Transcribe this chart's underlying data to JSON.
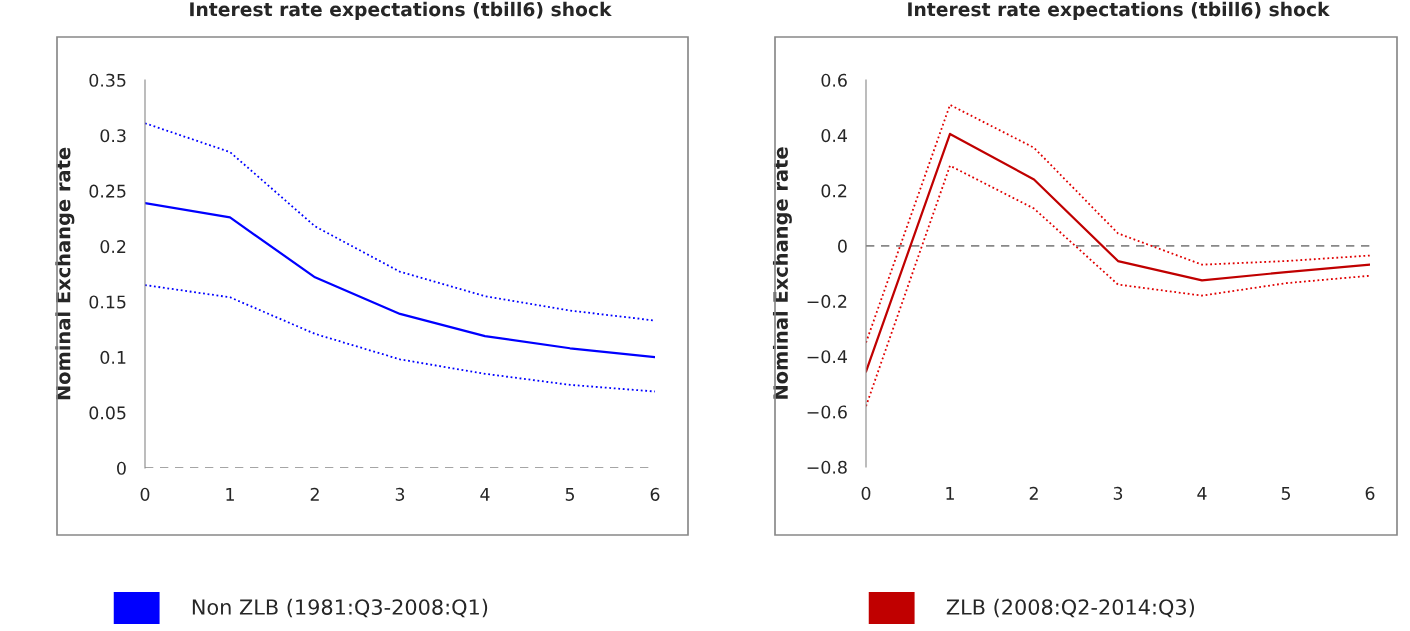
{
  "chart_data": [
    {
      "type": "line",
      "title": "Interest rate expectations (tbill6) shock",
      "ylabel": "Nominal Exchange rate",
      "x": [
        0,
        1,
        2,
        3,
        4,
        5,
        6
      ],
      "xlim": [
        0,
        6
      ],
      "xticks": [
        0,
        1,
        2,
        3,
        4,
        5,
        6
      ],
      "ylim": [
        0,
        0.35
      ],
      "yticks": [
        0,
        0.05,
        0.1,
        0.15,
        0.2,
        0.25,
        0.3,
        0.35
      ],
      "grid": false,
      "legend": "bottom",
      "marker": "none",
      "series": [
        {
          "name": "Non ZLB (1981:Q3-2008:Q1)",
          "color": "#0000ff",
          "line_style": "solid",
          "values": [
            0.239,
            0.226,
            0.172,
            0.139,
            0.119,
            0.108,
            0.1
          ]
        },
        {
          "color": "#0000ff",
          "line_style": "dotted",
          "values": [
            0.311,
            0.285,
            0.218,
            0.177,
            0.155,
            0.142,
            0.133
          ]
        },
        {
          "color": "#0000ff",
          "line_style": "dotted",
          "values": [
            0.165,
            0.154,
            0.121,
            0.098,
            0.085,
            0.075,
            0.069
          ]
        }
      ],
      "ref_lines": [
        {
          "axis": "y",
          "value": 0,
          "color": "#888888",
          "line_style": "dashed"
        }
      ]
    },
    {
      "type": "line",
      "title": "Interest rate expectations (tbill6) shock",
      "ylabel": "Nominal Exchange rate",
      "x": [
        0,
        1,
        2,
        3,
        4,
        5,
        6
      ],
      "xlim": [
        0,
        6
      ],
      "xticks": [
        0,
        1,
        2,
        3,
        4,
        5,
        6
      ],
      "ylim": [
        -0.8,
        0.6
      ],
      "yticks": [
        -0.8,
        -0.6,
        -0.4,
        -0.2,
        0,
        0.2,
        0.4,
        0.6
      ],
      "grid": false,
      "legend": "bottom",
      "marker": "none",
      "series": [
        {
          "name": "ZLB (2008:Q2-2014:Q3)",
          "color": "#c00000",
          "line_style": "solid",
          "values": [
            -0.455,
            0.405,
            0.24,
            -0.055,
            -0.125,
            -0.095,
            -0.068
          ]
        },
        {
          "color": "#e00000",
          "line_style": "dotted",
          "values": [
            -0.35,
            0.51,
            0.355,
            0.045,
            -0.068,
            -0.055,
            -0.035
          ]
        },
        {
          "color": "#e00000",
          "line_style": "dotted",
          "values": [
            -0.58,
            0.29,
            0.135,
            -0.14,
            -0.18,
            -0.135,
            -0.108
          ]
        }
      ],
      "ref_lines": [
        {
          "axis": "y",
          "value": 0,
          "color": "#888888",
          "line_style": "dashed"
        }
      ]
    }
  ]
}
